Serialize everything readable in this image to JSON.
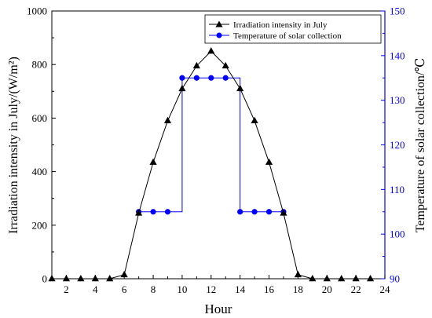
{
  "chart_data": {
    "type": "line",
    "xlabel": "Hour",
    "ylabel_left": "Irradiation intensity in July/(W/m²)",
    "ylabel_right": "Temperature of solar collection/℃",
    "xlim": [
      1,
      24
    ],
    "x_ticks": [
      2,
      4,
      6,
      8,
      10,
      12,
      14,
      16,
      18,
      20,
      22,
      24
    ],
    "ylim_left": [
      0,
      1000
    ],
    "y_ticks_left": [
      0,
      200,
      400,
      600,
      800,
      1000
    ],
    "ylim_right": [
      90,
      150
    ],
    "y_ticks_right": [
      90,
      100,
      110,
      120,
      130,
      140,
      150
    ],
    "grid": false,
    "legend_position": "top-right",
    "colors": {
      "irradiation": "#000000",
      "temperature": "#0000ff"
    },
    "series": [
      {
        "name": "Irradiation intensity in July",
        "axis": "left",
        "marker": "triangle",
        "x": [
          1,
          2,
          3,
          4,
          5,
          6,
          7,
          8,
          9,
          10,
          11,
          12,
          13,
          14,
          15,
          16,
          17,
          18,
          19,
          20,
          21,
          22,
          23
        ],
        "values": [
          0,
          0,
          0,
          0,
          0,
          15,
          245,
          435,
          590,
          710,
          795,
          850,
          795,
          710,
          590,
          435,
          245,
          15,
          0,
          0,
          0,
          0,
          0
        ]
      },
      {
        "name": "Temperature of solar collection",
        "axis": "right",
        "marker": "circle",
        "step": true,
        "x": [
          7,
          8,
          9,
          10,
          11,
          12,
          13,
          14,
          15,
          16,
          17
        ],
        "values": [
          105,
          105,
          105,
          135,
          135,
          135,
          135,
          105,
          105,
          105,
          105
        ]
      }
    ]
  }
}
